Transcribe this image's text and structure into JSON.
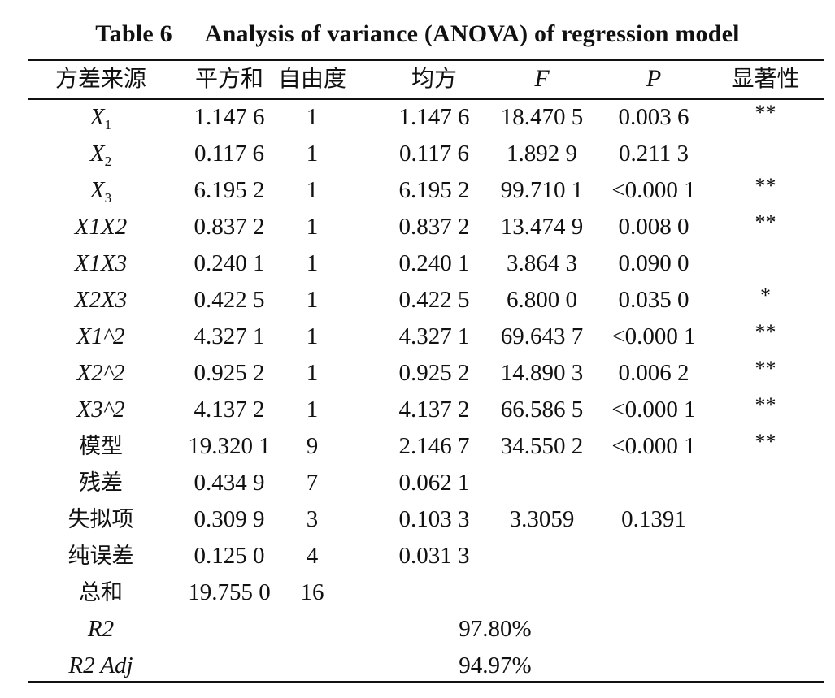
{
  "table": {
    "number": "Table 6",
    "title": "Analysis of variance (ANOVA) of regression model",
    "headers": [
      "方差来源",
      "平方和",
      "自由度",
      "均方",
      "F",
      "P",
      "显著性"
    ],
    "rows": [
      {
        "source_var": "X",
        "source_sub": "1",
        "ss": "1.147 6",
        "df": "1",
        "ms": "1.147 6",
        "f": "18.470 5",
        "p": "0.003 6",
        "sig": "**"
      },
      {
        "source_var": "X",
        "source_sub": "2",
        "ss": "0.117 6",
        "df": "1",
        "ms": "0.117 6",
        "f": "1.892 9",
        "p": "0.211 3",
        "sig": ""
      },
      {
        "source_var": "X",
        "source_sub": "3",
        "ss": "6.195 2",
        "df": "1",
        "ms": "6.195 2",
        "f": "99.710 1",
        "p": "<0.000 1",
        "sig": "**"
      },
      {
        "source_var": "X1X2",
        "ss": "0.837 2",
        "df": "1",
        "ms": "0.837 2",
        "f": "13.474 9",
        "p": "0.008 0",
        "sig": "**"
      },
      {
        "source_var": "X1X3",
        "ss": "0.240 1",
        "df": "1",
        "ms": "0.240 1",
        "f": "3.864 3",
        "p": "0.090 0",
        "sig": ""
      },
      {
        "source_var": "X2X3",
        "ss": "0.422 5",
        "df": "1",
        "ms": "0.422 5",
        "f": "6.800 0",
        "p": "0.035 0",
        "sig": "*"
      },
      {
        "source_var": "X1^2",
        "ss": "4.327 1",
        "df": "1",
        "ms": "4.327 1",
        "f": "69.643 7",
        "p": "<0.000 1",
        "sig": "**"
      },
      {
        "source_var": "X2^2",
        "ss": "0.925 2",
        "df": "1",
        "ms": "0.925 2",
        "f": "14.890 3",
        "p": "0.006 2",
        "sig": "**"
      },
      {
        "source_var": "X3^2",
        "ss": "4.137 2",
        "df": "1",
        "ms": "4.137 2",
        "f": "66.586 5",
        "p": "<0.000 1",
        "sig": "**"
      },
      {
        "source": "模型",
        "ss": "19.320 1",
        "df": "9",
        "ms": "2.146 7",
        "f": "34.550 2",
        "p": "<0.000 1",
        "sig": "**"
      },
      {
        "source": "残差",
        "ss": "0.434 9",
        "df": "7",
        "ms": "0.062 1",
        "f": "",
        "p": "",
        "sig": ""
      },
      {
        "source": "失拟项",
        "ss": "0.309 9",
        "df": "3",
        "ms": "0.103 3",
        "f": "3.3059",
        "p": "0.1391",
        "sig": ""
      },
      {
        "source": "纯误差",
        "ss": "0.125 0",
        "df": "4",
        "ms": "0.031 3",
        "f": "",
        "p": "",
        "sig": ""
      },
      {
        "source": "总和",
        "ss": "19.755 0",
        "df": "16",
        "ms": "",
        "f": "",
        "p": "",
        "sig": ""
      }
    ],
    "r2": {
      "label": "R2",
      "value": "97.80%"
    },
    "r2_adj": {
      "label": "R2 Adj",
      "value": "94.97%"
    }
  }
}
